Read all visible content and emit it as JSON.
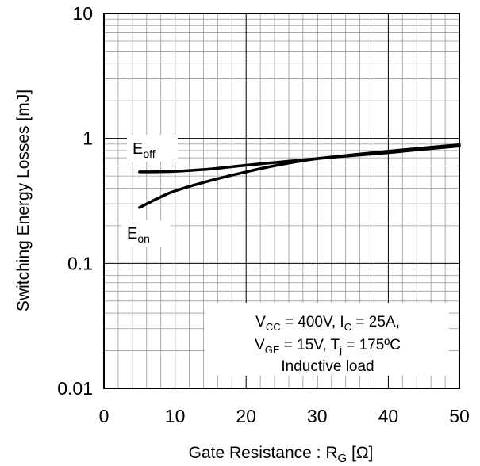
{
  "chart_data": {
    "type": "line",
    "xlabel": {
      "main": "Gate Resistance : R",
      "sub": "G",
      "unit": " [Ω]"
    },
    "ylabel": "Switching Energy Losses [mJ]",
    "xlim": [
      0,
      50
    ],
    "ylim": [
      0.01,
      10
    ],
    "yscale": "log",
    "grid": true,
    "x_ticks": [
      "0",
      "10",
      "20",
      "30",
      "40",
      "50"
    ],
    "y_ticks": [
      "0.01",
      "0.1",
      "1",
      "10"
    ],
    "series": [
      {
        "label_main": "E",
        "label_sub": "off",
        "x": [
          5,
          10,
          15,
          20,
          25,
          30,
          35,
          40,
          45,
          50
        ],
        "y": [
          0.54,
          0.545,
          0.57,
          0.61,
          0.65,
          0.69,
          0.73,
          0.77,
          0.82,
          0.87
        ]
      },
      {
        "label_main": "E",
        "label_sub": "on",
        "x": [
          5,
          7.5,
          10,
          15,
          20,
          25,
          30,
          35,
          40,
          45,
          50
        ],
        "y": [
          0.28,
          0.33,
          0.38,
          0.46,
          0.54,
          0.62,
          0.69,
          0.74,
          0.79,
          0.84,
          0.89
        ]
      }
    ],
    "conditions": {
      "line1": [
        {
          "t": "V",
          "sub": false
        },
        {
          "t": "CC",
          "sub": true
        },
        {
          "t": " = 400V, I",
          "sub": false
        },
        {
          "t": "C",
          "sub": true
        },
        {
          "t": " = 25A,",
          "sub": false
        }
      ],
      "line2": [
        {
          "t": "V",
          "sub": false
        },
        {
          "t": "GE",
          "sub": true
        },
        {
          "t": " = 15V, T",
          "sub": false
        },
        {
          "t": "j",
          "sub": true
        },
        {
          "t": " = 175ºC",
          "sub": false
        }
      ],
      "line3": "Inductive load"
    }
  }
}
